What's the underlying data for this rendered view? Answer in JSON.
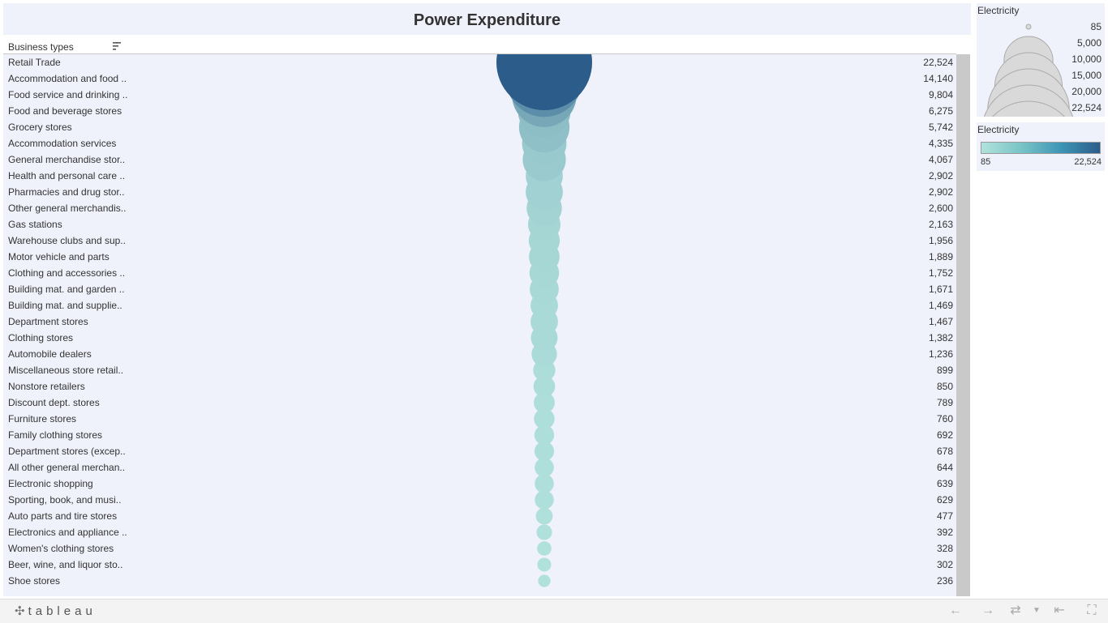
{
  "title": "Power Expenditure",
  "header": {
    "dimension_label": "Business types"
  },
  "chart_data": {
    "type": "scatter",
    "title": "Power Expenditure",
    "measure": "Electricity",
    "encoding": "bubble size and color by Electricity",
    "categories": [
      "Retail Trade",
      "Accommodation and food ..",
      "Food service and drinking ..",
      "Food and beverage stores",
      "Grocery stores",
      "Accommodation services",
      "General merchandise stor..",
      "Health and personal care ..",
      "Pharmacies and drug stor..",
      "Other general merchandis..",
      "Gas stations",
      "Warehouse clubs and sup..",
      "Motor vehicle and parts",
      "Clothing and accessories ..",
      "Building mat. and garden ..",
      "Building mat. and supplie..",
      "Department stores",
      "Clothing stores",
      "Automobile dealers",
      "Miscellaneous store retail..",
      "Nonstore retailers",
      "Discount dept. stores",
      "Furniture stores",
      "Family clothing stores",
      "Department stores (excep..",
      "All other general merchan..",
      "Electronic shopping",
      "Sporting, book, and  musi..",
      "Auto parts and tire stores",
      "Electronics and appliance ..",
      "Women's clothing stores",
      "Beer, wine, and liquor sto..",
      "Shoe stores"
    ],
    "values": [
      22524,
      14140,
      9804,
      6275,
      5742,
      4335,
      4067,
      2902,
      2902,
      2600,
      2163,
      1956,
      1889,
      1752,
      1671,
      1469,
      1467,
      1382,
      1236,
      899,
      850,
      789,
      760,
      692,
      678,
      644,
      639,
      629,
      477,
      392,
      328,
      302,
      236
    ],
    "value_labels": [
      "22,524",
      "14,140",
      "9,804",
      "6,275",
      "5,742",
      "4,335",
      "4,067",
      "2,902",
      "2,902",
      "2,600",
      "2,163",
      "1,956",
      "1,889",
      "1,752",
      "1,671",
      "1,469",
      "1,467",
      "1,382",
      "1,236",
      "899",
      "850",
      "789",
      "760",
      "692",
      "678",
      "644",
      "639",
      "629",
      "477",
      "392",
      "328",
      "302",
      "236"
    ],
    "range": [
      85,
      22524
    ]
  },
  "legend_size": {
    "title": "Electricity",
    "entries": [
      85,
      5000,
      10000,
      15000,
      20000,
      22524
    ],
    "labels": [
      "85",
      "5,000",
      "10,000",
      "15,000",
      "20,000",
      "22,524"
    ]
  },
  "legend_color": {
    "title": "Electricity",
    "min_label": "85",
    "max_label": "22,524",
    "color_low": "#b2e2dc",
    "color_high": "#2b5c8a"
  },
  "footer": {
    "logo_text": "tableau"
  }
}
